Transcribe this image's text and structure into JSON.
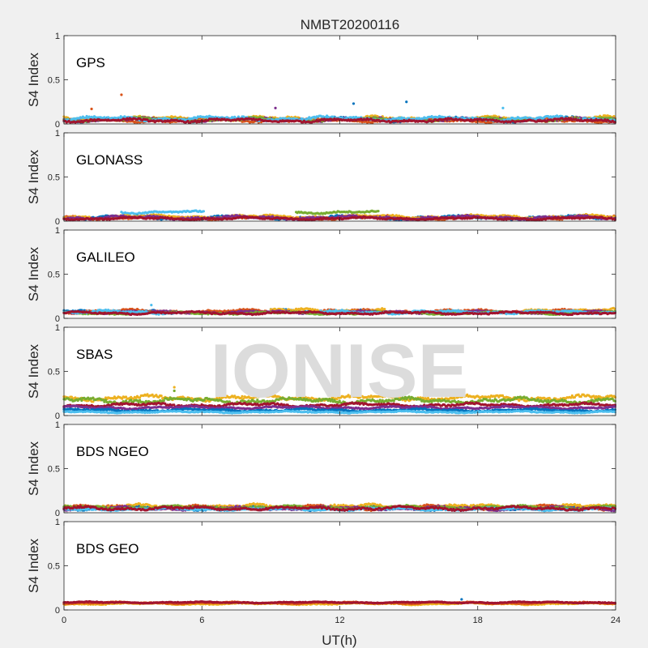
{
  "chart_data": {
    "type": "scatter",
    "title": "NMBT20200116",
    "xlabel": "UT(h)",
    "ylabel": "S4 Index",
    "xlim": [
      0,
      24
    ],
    "ylim": [
      0,
      1
    ],
    "xticks": [
      "0",
      "6",
      "12",
      "18",
      "24"
    ],
    "yticks": [
      "0",
      "0.5",
      "1"
    ],
    "watermark": "IONISE",
    "colors": [
      "#0072BD",
      "#D95319",
      "#EDB120",
      "#7E2F8E",
      "#77AC30",
      "#4DBEEE",
      "#A2142F"
    ],
    "panels": [
      {
        "label": "GPS",
        "series": [
          {
            "color": "#0072BD",
            "base": 0.05,
            "amp": 0.025,
            "segments": [
              [
                0,
                24
              ]
            ]
          },
          {
            "color": "#D95319",
            "base": 0.04,
            "amp": 0.02,
            "segments": [
              [
                0,
                24
              ]
            ]
          },
          {
            "color": "#EDB120",
            "base": 0.06,
            "amp": 0.025,
            "segments": [
              [
                0,
                24
              ]
            ]
          },
          {
            "color": "#7E2F8E",
            "base": 0.05,
            "amp": 0.02,
            "segments": [
              [
                0,
                24
              ]
            ]
          },
          {
            "color": "#77AC30",
            "base": 0.05,
            "amp": 0.02,
            "segments": [
              [
                0,
                24
              ]
            ]
          },
          {
            "color": "#4DBEEE",
            "base": 0.06,
            "amp": 0.025,
            "segments": [
              [
                0,
                24
              ]
            ]
          },
          {
            "color": "#A2142F",
            "base": 0.04,
            "amp": 0.02,
            "segments": [
              [
                0,
                24
              ]
            ]
          }
        ],
        "outliers": [
          {
            "x": 2.5,
            "y": 0.33,
            "color": "#D95319"
          },
          {
            "x": 1.2,
            "y": 0.17,
            "color": "#D95319"
          },
          {
            "x": 12.6,
            "y": 0.23,
            "color": "#0072BD"
          },
          {
            "x": 14.9,
            "y": 0.25,
            "color": "#0072BD"
          },
          {
            "x": 9.2,
            "y": 0.18,
            "color": "#7E2F8E"
          },
          {
            "x": 19.1,
            "y": 0.18,
            "color": "#4DBEEE"
          }
        ]
      },
      {
        "label": "GLONASS",
        "series": [
          {
            "color": "#4DBEEE",
            "base": 0.1,
            "amp": 0.015,
            "segments": [
              [
                2.5,
                6.1
              ]
            ]
          },
          {
            "color": "#77AC30",
            "base": 0.1,
            "amp": 0.015,
            "segments": [
              [
                10.1,
                13.7
              ]
            ]
          },
          {
            "color": "#0072BD",
            "base": 0.04,
            "amp": 0.02,
            "segments": [
              [
                0,
                24
              ]
            ]
          },
          {
            "color": "#D95319",
            "base": 0.04,
            "amp": 0.02,
            "segments": [
              [
                0,
                24
              ]
            ]
          },
          {
            "color": "#EDB120",
            "base": 0.05,
            "amp": 0.02,
            "segments": [
              [
                0,
                24
              ]
            ]
          },
          {
            "color": "#7E2F8E",
            "base": 0.04,
            "amp": 0.02,
            "segments": [
              [
                0,
                24
              ]
            ]
          },
          {
            "color": "#A2142F",
            "base": 0.03,
            "amp": 0.015,
            "segments": [
              [
                0,
                24
              ]
            ]
          }
        ],
        "outliers": []
      },
      {
        "label": "GALILEO",
        "series": [
          {
            "color": "#0072BD",
            "base": 0.08,
            "amp": 0.02,
            "segments": [
              [
                0,
                4
              ],
              [
                9,
                13
              ]
            ]
          },
          {
            "color": "#D95319",
            "base": 0.08,
            "amp": 0.02,
            "segments": [
              [
                0,
                24
              ]
            ]
          },
          {
            "color": "#EDB120",
            "base": 0.09,
            "amp": 0.02,
            "segments": [
              [
                9,
                14
              ],
              [
                20,
                24
              ]
            ]
          },
          {
            "color": "#7E2F8E",
            "base": 0.07,
            "amp": 0.015,
            "segments": [
              [
                0,
                24
              ]
            ]
          },
          {
            "color": "#77AC30",
            "base": 0.06,
            "amp": 0.015,
            "segments": [
              [
                0,
                24
              ]
            ]
          },
          {
            "color": "#4DBEEE",
            "base": 0.07,
            "amp": 0.02,
            "segments": [
              [
                0,
                5
              ],
              [
                11,
                24
              ]
            ]
          },
          {
            "color": "#A2142F",
            "base": 0.06,
            "amp": 0.015,
            "segments": [
              [
                0,
                24
              ]
            ]
          }
        ],
        "outliers": [
          {
            "x": 3.8,
            "y": 0.15,
            "color": "#4DBEEE"
          }
        ]
      },
      {
        "label": "SBAS",
        "series": [
          {
            "color": "#EDB120",
            "base": 0.2,
            "amp": 0.03,
            "segments": [
              [
                0,
                24
              ]
            ]
          },
          {
            "color": "#77AC30",
            "base": 0.17,
            "amp": 0.03,
            "segments": [
              [
                0,
                24
              ]
            ]
          },
          {
            "color": "#A2142F",
            "base": 0.12,
            "amp": 0.02,
            "segments": [
              [
                0,
                24
              ]
            ]
          },
          {
            "color": "#7E2F8E",
            "base": 0.09,
            "amp": 0.015,
            "segments": [
              [
                0,
                24
              ]
            ]
          },
          {
            "color": "#0072BD",
            "base": 0.06,
            "amp": 0.015,
            "segments": [
              [
                0,
                24
              ]
            ]
          },
          {
            "color": "#4DBEEE",
            "base": 0.04,
            "amp": 0.01,
            "segments": [
              [
                0,
                24
              ]
            ]
          }
        ],
        "outliers": [
          {
            "x": 4.8,
            "y": 0.32,
            "color": "#EDB120"
          },
          {
            "x": 4.8,
            "y": 0.28,
            "color": "#77AC30"
          }
        ]
      },
      {
        "label": "BDS NGEO",
        "series": [
          {
            "color": "#0072BD",
            "base": 0.05,
            "amp": 0.02,
            "segments": [
              [
                0,
                24
              ]
            ]
          },
          {
            "color": "#D95319",
            "base": 0.06,
            "amp": 0.025,
            "segments": [
              [
                0,
                24
              ]
            ]
          },
          {
            "color": "#EDB120",
            "base": 0.07,
            "amp": 0.025,
            "segments": [
              [
                0,
                24
              ]
            ]
          },
          {
            "color": "#7E2F8E",
            "base": 0.05,
            "amp": 0.02,
            "segments": [
              [
                0,
                24
              ]
            ]
          },
          {
            "color": "#77AC30",
            "base": 0.06,
            "amp": 0.02,
            "segments": [
              [
                0,
                24
              ]
            ]
          },
          {
            "color": "#4DBEEE",
            "base": 0.04,
            "amp": 0.015,
            "segments": [
              [
                0,
                24
              ]
            ]
          },
          {
            "color": "#A2142F",
            "base": 0.05,
            "amp": 0.02,
            "segments": [
              [
                0,
                24
              ]
            ]
          }
        ],
        "outliers": []
      },
      {
        "label": "BDS GEO",
        "series": [
          {
            "color": "#EDB120",
            "base": 0.07,
            "amp": 0.01,
            "segments": [
              [
                0,
                24
              ]
            ]
          },
          {
            "color": "#D95319",
            "base": 0.08,
            "amp": 0.01,
            "segments": [
              [
                0,
                24
              ]
            ]
          },
          {
            "color": "#A2142F",
            "base": 0.085,
            "amp": 0.008,
            "segments": [
              [
                0,
                24
              ]
            ]
          }
        ],
        "outliers": [
          {
            "x": 17.3,
            "y": 0.12,
            "color": "#0072BD"
          }
        ]
      }
    ]
  }
}
